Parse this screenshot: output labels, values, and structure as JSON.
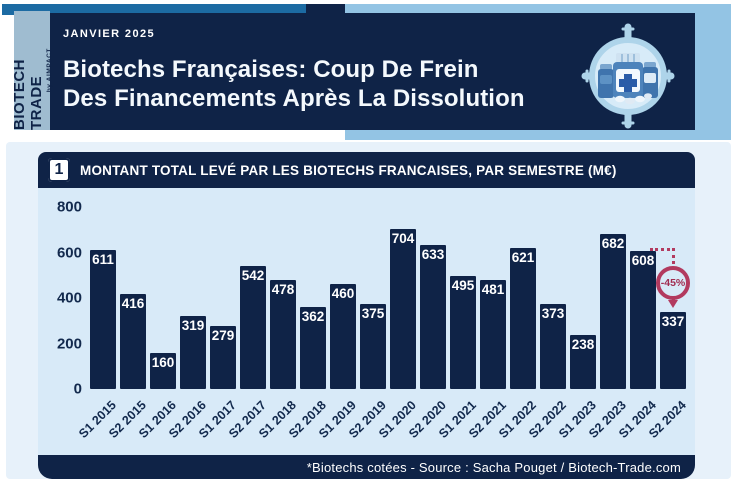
{
  "header": {
    "brand": "BIOTECH TRADE",
    "brand_sub": "by AIMPACT",
    "date_label": "JANVIER 2025",
    "title_line1": "Biotechs Françaises: Coup De Frein",
    "title_line2": "Des Financements Après La Dissolution"
  },
  "figure": {
    "number": "1",
    "title": "MONTANT TOTAL LEVÉ PAR LES BIOTECHS FRANCAISES, PAR SEMESTRE (M€)"
  },
  "chart_data": {
    "type": "bar",
    "title": "Montant total levé par les biotechs francaises, par semestre (M€)",
    "categories": [
      "S1 2015",
      "S2 2015",
      "S1 2016",
      "S2 2016",
      "S1 2017",
      "S2 2017",
      "S1 2018",
      "S2 2018",
      "S1 2019",
      "S2 2019",
      "S1 2020",
      "S2 2020",
      "S1 2021",
      "S2 2021",
      "S1 2022",
      "S2 2022",
      "S1 2023",
      "S2 2023",
      "S1 2024",
      "S2 2024"
    ],
    "values": [
      611,
      416,
      160,
      319,
      279,
      542,
      478,
      362,
      460,
      375,
      704,
      633,
      495,
      481,
      621,
      373,
      238,
      682,
      608,
      337
    ],
    "xlabel": "",
    "ylabel": "",
    "ylim": [
      0,
      800
    ],
    "yticks": [
      0,
      200,
      400,
      600,
      800
    ],
    "grid": false,
    "legend": false,
    "bar_color": "#0f2347",
    "annotation": {
      "label": "-45%",
      "from_category": "S1 2024",
      "to_category": "S2 2024",
      "color": "#b23a5f"
    }
  },
  "footer": {
    "text": "*Biotechs cotées - Source : Sacha Pouget / Biotech-Trade.com"
  },
  "colors": {
    "navy": "#0f2347",
    "panel_blue": "#d8eaf8",
    "outer_blue": "#e7f1fa",
    "medium_blue": "#1c6ba3",
    "light_blue_block": "#93c4e4",
    "brand_strip": "#9fbcd0",
    "accent_crimson": "#b23a5f"
  }
}
